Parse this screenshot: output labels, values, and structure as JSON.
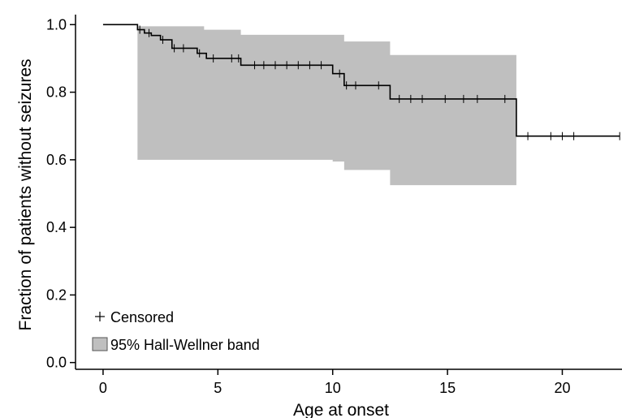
{
  "chart_data": {
    "type": "line",
    "subtype": "kaplan-meier survival curve",
    "title": "",
    "xlabel": "Age at onset",
    "ylabel": "Fraction of patients without seizures",
    "xlim": [
      -1.2,
      22.6
    ],
    "ylim": [
      -0.02,
      1.02
    ],
    "xticks": [
      0,
      5,
      10,
      15,
      20
    ],
    "xtick_labels": [
      "0",
      "5",
      "10",
      "15",
      "20"
    ],
    "yticks": [
      0.0,
      0.2,
      0.4,
      0.6,
      0.8,
      1.0
    ],
    "ytick_labels": [
      "0.0",
      "0.2",
      "0.4",
      "0.6",
      "0.8",
      "1.0"
    ],
    "grid": false,
    "legend_position": "bottom-left",
    "colors": {
      "curve": "#000000",
      "band": "#bfbfbf",
      "band_edge": "#888888"
    },
    "series": [
      {
        "name": "",
        "kind": "step",
        "x": [
          0,
          1.5,
          1.8,
          2.1,
          2.5,
          3.0,
          4.1,
          4.5,
          5.0,
          6.0,
          10.0,
          10.5,
          12.5,
          18.0,
          22.5
        ],
        "y": [
          1.0,
          0.985,
          0.975,
          0.968,
          0.955,
          0.93,
          0.915,
          0.9,
          0.9,
          0.88,
          0.855,
          0.82,
          0.78,
          0.67,
          0.67
        ]
      }
    ],
    "censored": {
      "name": "Censored",
      "x": [
        1.6,
        2.0,
        2.6,
        3.1,
        3.5,
        4.2,
        4.8,
        5.6,
        5.9,
        6.6,
        7.0,
        7.5,
        8.0,
        8.5,
        9.0,
        9.5,
        10.3,
        10.6,
        11.0,
        12.0,
        12.9,
        13.4,
        13.9,
        14.9,
        15.7,
        16.3,
        17.5,
        18.5,
        19.5,
        20.0,
        20.5,
        22.5
      ],
      "y": [
        0.985,
        0.975,
        0.955,
        0.93,
        0.93,
        0.915,
        0.9,
        0.9,
        0.9,
        0.88,
        0.88,
        0.88,
        0.88,
        0.88,
        0.88,
        0.88,
        0.855,
        0.82,
        0.82,
        0.82,
        0.78,
        0.78,
        0.78,
        0.78,
        0.78,
        0.78,
        0.78,
        0.67,
        0.67,
        0.67,
        0.67,
        0.67
      ]
    },
    "band": {
      "name": "95% Hall-Wellner band",
      "x": [
        1.5,
        4.4,
        6.0,
        10.0,
        10.5,
        12.5,
        18.0
      ],
      "upper": [
        0.995,
        0.985,
        0.97,
        0.97,
        0.95,
        0.91,
        0.91
      ],
      "lower": [
        0.6,
        0.6,
        0.6,
        0.595,
        0.57,
        0.525,
        0.525
      ]
    },
    "legend": [
      {
        "symbol": "+",
        "label": "Censored"
      },
      {
        "symbol": "box",
        "label": "95% Hall-Wellner band"
      }
    ]
  }
}
